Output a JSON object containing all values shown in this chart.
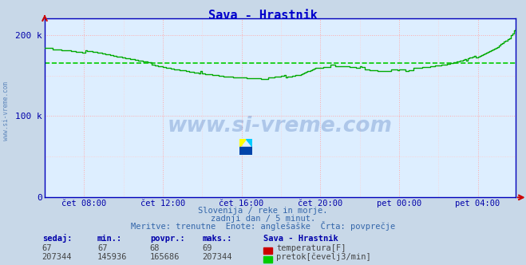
{
  "title": "Sava - Hrastnik",
  "title_color": "#0000cc",
  "bg_color": "#c8d8e8",
  "plot_bg_color": "#ddeeff",
  "grid_color_major": "#ffaaaa",
  "grid_color_minor": "#ffcccc",
  "flow_avg": 165686,
  "flow_min": 145936,
  "flow_max": 207344,
  "flow_current": 207344,
  "temp_avg": 68,
  "temp_min": 67,
  "temp_max": 69,
  "temp_current": 67,
  "x_tick_labels": [
    "čet 08:00",
    "čet 12:00",
    "čet 16:00",
    "čet 20:00",
    "pet 00:00",
    "pet 04:00"
  ],
  "y_ticks": [
    0,
    100000,
    200000
  ],
  "y_tick_labels": [
    "0",
    "100 k",
    "200 k"
  ],
  "ylim": [
    0,
    220000
  ],
  "watermark": "www.si-vreme.com",
  "subtitle1": "Slovenija / reke in morje.",
  "subtitle2": "zadnji dan / 5 minut.",
  "subtitle3": "Meritve: trenutne  Enote: anglešaške  Črta: povprečje",
  "legend_title": "Sava - Hrastnik",
  "legend_row1_label": "temperatura[F]",
  "legend_row2_label": "pretok[čevelj3/min]",
  "legend_row1_color": "#cc0000",
  "legend_row2_color": "#00cc00",
  "flow_line_color": "#00aa00",
  "avg_line_color": "#00cc00",
  "n_points": 288
}
